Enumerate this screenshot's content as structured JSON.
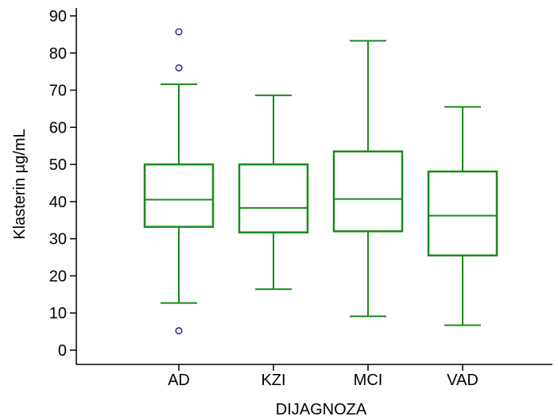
{
  "chart_data": {
    "type": "box",
    "title": "",
    "xlabel": "DIJAGNOZA",
    "ylabel": "Klasterin µg/mL",
    "ylim": [
      0,
      90
    ],
    "yticks": [
      0,
      10,
      20,
      30,
      40,
      50,
      60,
      70,
      80,
      90
    ],
    "categories": [
      "AD",
      "KZI",
      "MCI",
      "VAD"
    ],
    "grid": false,
    "legend": "none",
    "colors": {
      "box": "#1a8a1a",
      "outlier": "#1a1a8a",
      "axis": "#000000"
    },
    "boxes": [
      {
        "category": "AD",
        "whisker_low": 12.7,
        "q1": 33.2,
        "median": 40.5,
        "q3": 50.0,
        "whisker_high": 71.6,
        "outliers": [
          5.2,
          76.0,
          85.7
        ]
      },
      {
        "category": "KZI",
        "whisker_low": 16.4,
        "q1": 31.7,
        "median": 38.3,
        "q3": 50.0,
        "whisker_high": 68.6,
        "outliers": []
      },
      {
        "category": "MCI",
        "whisker_low": 9.1,
        "q1": 32.0,
        "median": 40.7,
        "q3": 53.5,
        "whisker_high": 83.3,
        "outliers": []
      },
      {
        "category": "VAD",
        "whisker_low": 6.7,
        "q1": 25.5,
        "median": 36.2,
        "q3": 48.1,
        "whisker_high": 65.5,
        "outliers": []
      }
    ]
  }
}
